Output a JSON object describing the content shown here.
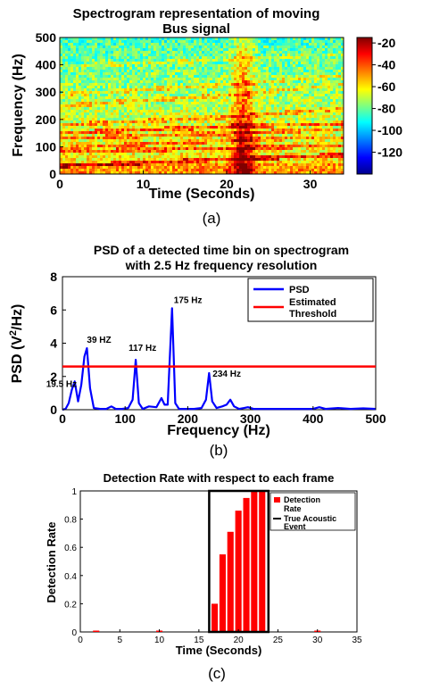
{
  "charts": [
    {
      "type": "heatmap",
      "title_line1": "Spectrogram representation of moving",
      "title_line2": "Bus signal",
      "xlabel": "Time (Seconds)",
      "ylabel": "Frequency (Hz)",
      "xlim": [
        0,
        34
      ],
      "ylim": [
        0,
        500
      ],
      "x_ticks": [
        "0",
        "10",
        "20",
        "30"
      ],
      "y_ticks": [
        "0",
        "100",
        "200",
        "300",
        "400",
        "500"
      ],
      "colorbar_ticks": [
        "-20",
        "-40",
        "-60",
        "-80",
        "-100",
        "-120"
      ],
      "colorbar_range": [
        -140,
        -15
      ],
      "colormap": [
        "#00008f",
        "#0000ff",
        "#00ffff",
        "#ffff00",
        "#ff0000",
        "#800000"
      ],
      "caption": "(a)"
    },
    {
      "type": "line",
      "title_line1": "PSD of a detected time bin on spectrogram",
      "title_line2": "with 2.5 Hz frequency resolution",
      "xlabel": "Frequency (Hz)",
      "ylabel_main": "PSD (V",
      "ylabel_sup": "2",
      "ylabel_end": "/Hz)",
      "xlim": [
        0,
        500
      ],
      "ylim": [
        0,
        8
      ],
      "x_ticks": [
        "0",
        "100",
        "200",
        "300",
        "400",
        "500"
      ],
      "y_ticks": [
        "0",
        "2",
        "4",
        "6",
        "8"
      ],
      "series": [
        {
          "name": "PSD",
          "color": "#0000ff",
          "x": [
            0,
            5,
            10,
            15,
            19.5,
            25,
            30,
            35,
            39,
            44,
            50,
            60,
            70,
            78,
            85,
            95,
            105,
            112,
            117,
            122,
            128,
            138,
            150,
            158,
            163,
            168,
            175,
            180,
            186,
            195,
            210,
            222,
            229,
            234,
            239,
            246,
            255,
            262,
            268,
            274,
            282,
            290,
            296,
            305,
            330,
            360,
            380,
            400,
            410,
            420,
            440,
            460,
            480,
            500
          ],
          "y": [
            0,
            0.05,
            0.4,
            1.2,
            1.7,
            0.5,
            1.5,
            3.2,
            3.7,
            1.3,
            0.1,
            0.05,
            0.05,
            0.2,
            0.05,
            0.05,
            0.1,
            0.6,
            3.0,
            0.4,
            0.05,
            0.2,
            0.15,
            0.7,
            0.3,
            0.3,
            6.1,
            0.4,
            0.05,
            0.05,
            0.05,
            0.1,
            0.6,
            2.2,
            0.5,
            0.1,
            0.2,
            0.3,
            0.6,
            0.2,
            0.05,
            0.1,
            0.15,
            0.05,
            0.05,
            0.05,
            0.05,
            0.05,
            0.15,
            0.05,
            0.1,
            0.05,
            0.08,
            0.05
          ]
        },
        {
          "name": "Estimated Threshold",
          "color": "#ff0000",
          "x": [
            0,
            500
          ],
          "y": [
            2.6,
            2.6
          ]
        }
      ],
      "annotations": [
        {
          "label": "19.5 Hz",
          "x": 19.5,
          "y": 1.7
        },
        {
          "label": "39 HZ",
          "x": 39,
          "y": 3.7
        },
        {
          "label": "117 Hz",
          "x": 117,
          "y": 3.0
        },
        {
          "label": "175 Hz",
          "x": 175,
          "y": 6.1
        },
        {
          "label": "234 Hz",
          "x": 234,
          "y": 2.2
        }
      ],
      "legend_line1": "PSD",
      "legend_line2a": "Estimated",
      "legend_line2b": "Threshold",
      "caption": "(b)"
    },
    {
      "type": "bar",
      "title": "Detection Rate with respect to each frame",
      "xlabel": "Time (Seconds)",
      "ylabel": "Detection Rate",
      "xlim": [
        0,
        35
      ],
      "ylim": [
        0,
        1
      ],
      "x_ticks": [
        "0",
        "5",
        "10",
        "15",
        "20",
        "25",
        "30",
        "35"
      ],
      "y_ticks": [
        "0",
        "0.2",
        "0.4",
        "0.6",
        "0.8",
        "1"
      ],
      "bar_color": "#ff0000",
      "series": [
        {
          "name": "Detection Rate",
          "x": [
            2,
            10,
            17,
            18,
            19,
            20,
            21,
            22,
            23,
            30
          ],
          "values": [
            0.005,
            0.005,
            0.2,
            0.55,
            0.71,
            0.86,
            0.95,
            1.0,
            1.0,
            0.005
          ]
        }
      ],
      "event_box": {
        "name": "True Acoustic Event",
        "x_start": 16.3,
        "x_end": 23.8,
        "y_top": 1.0
      },
      "legend_line1a": "Detection",
      "legend_line1b": "Rate",
      "legend_line2a": "True Acoustic",
      "legend_line2b": "Event",
      "caption": "(c)"
    }
  ]
}
